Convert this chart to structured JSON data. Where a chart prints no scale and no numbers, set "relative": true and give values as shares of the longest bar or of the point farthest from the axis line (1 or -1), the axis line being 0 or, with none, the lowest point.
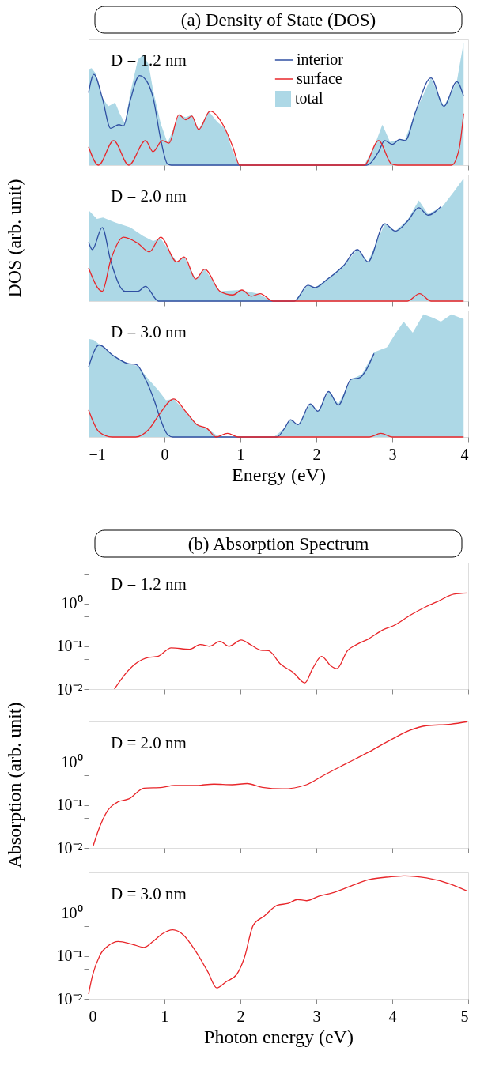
{
  "chart_data": [
    {
      "type": "line",
      "title": "(a)  Density of State (DOS)",
      "xlim": [
        -1,
        4
      ],
      "xticks": [
        -1,
        0,
        1,
        2,
        3,
        4
      ],
      "relative": true,
      "tick_labels": false,
      "grid": false,
      "legend": "top right",
      "line_style": "solid",
      "annotations": [
        "D = 1.2 nm"
      ],
      "series": [
        {
          "name": "interior",
          "color": "#2f4fa2",
          "x": [
            -1.0,
            -0.93,
            -0.82,
            -0.71,
            -0.6,
            -0.54,
            -0.45,
            -0.33,
            -0.23,
            -0.15,
            -0.05,
            0.04,
            0.09,
            2.66,
            2.82,
            2.9,
            3.0,
            3.1,
            3.17,
            3.31,
            3.51,
            3.68,
            3.85,
            3.94
          ],
          "values": [
            0.59,
            0.74,
            0.55,
            0.3,
            0.33,
            0.32,
            0.53,
            0.73,
            0.68,
            0.55,
            0.21,
            0.01,
            0,
            0,
            0.11,
            0.2,
            0.17,
            0.21,
            0.2,
            0.44,
            0.71,
            0.48,
            0.68,
            0.56
          ]
        },
        {
          "name": "surface",
          "color": "#e8262a",
          "x": [
            -1.0,
            -0.87,
            -0.67,
            -0.47,
            -0.25,
            -0.15,
            -0.03,
            0.06,
            0.19,
            0.28,
            0.36,
            0.45,
            0.6,
            0.77,
            0.9,
            0.99,
            2.63,
            2.82,
            2.99,
            3.07,
            3.78,
            3.88,
            3.94
          ],
          "values": [
            0.15,
            0,
            0.2,
            0,
            0.2,
            0.11,
            0.2,
            0.18,
            0.41,
            0.37,
            0.4,
            0.29,
            0.44,
            0.33,
            0.15,
            0,
            0,
            0.2,
            0.01,
            0,
            0,
            0.13,
            0.42
          ]
        },
        {
          "name": "total",
          "color": "#add8e6",
          "type": "area",
          "x": [
            -1.0,
            -0.96,
            -0.91,
            -0.82,
            -0.74,
            -0.65,
            -0.59,
            -0.52,
            -0.45,
            -0.35,
            -0.28,
            -0.21,
            -0.15,
            -0.05,
            0.04,
            0.12,
            0.19,
            0.28,
            0.36,
            0.45,
            0.58,
            0.7,
            0.8,
            0.9,
            0.99,
            2.63,
            2.76,
            2.87,
            2.97,
            3.1,
            3.17,
            3.31,
            3.51,
            3.68,
            3.85,
            3.94
          ],
          "values": [
            0.78,
            0.79,
            0.75,
            0.55,
            0.48,
            0.51,
            0.42,
            0.34,
            0.59,
            0.86,
            0.9,
            0.82,
            0.61,
            0.34,
            0.18,
            0.3,
            0.41,
            0.39,
            0.41,
            0.29,
            0.44,
            0.35,
            0.3,
            0.11,
            0,
            0,
            0.15,
            0.33,
            0.19,
            0.21,
            0.21,
            0.44,
            0.71,
            0.48,
            0.68,
            1.0
          ]
        }
      ]
    },
    {
      "type": "line",
      "ylabel": "DOS (arb. unit)",
      "xlim": [
        -1,
        4
      ],
      "xticks": [
        -1,
        0,
        1,
        2,
        3,
        4
      ],
      "relative": true,
      "tick_labels": false,
      "grid": false,
      "line_style": "solid",
      "annotations": [
        "D = 2.0 nm"
      ],
      "series": [
        {
          "color": "#2f4fa2",
          "x": [
            -1.0,
            -0.95,
            -0.82,
            -0.71,
            -0.52,
            -0.35,
            -0.25,
            -0.08,
            1.71,
            1.89,
            1.98,
            2.15,
            2.36,
            2.54,
            2.68,
            2.9,
            3.04,
            3.2,
            3.35,
            3.47,
            3.64
          ],
          "values": [
            0.48,
            0.42,
            0.6,
            0.33,
            0.08,
            0.08,
            0.12,
            0,
            0,
            0.13,
            0.11,
            0.18,
            0.29,
            0.42,
            0.32,
            0.63,
            0.57,
            0.65,
            0.76,
            0.7,
            0.77
          ]
        },
        {
          "color": "#e8262a",
          "x": [
            -1.0,
            -0.82,
            -0.71,
            -0.54,
            -0.35,
            -0.2,
            -0.05,
            0.16,
            0.26,
            0.41,
            0.53,
            0.73,
            0.9,
            1.02,
            1.14,
            1.26,
            1.43,
            3.2,
            3.36,
            3.51,
            3.94
          ],
          "values": [
            0.27,
            0.08,
            0.33,
            0.52,
            0.47,
            0.4,
            0.52,
            0.32,
            0.36,
            0.18,
            0.26,
            0.08,
            0.05,
            0.09,
            0.04,
            0.06,
            0,
            0,
            0.06,
            0,
            0
          ]
        },
        {
          "color": "#add8e6",
          "type": "area",
          "x": [
            -1.0,
            -0.89,
            -0.81,
            -0.65,
            -0.45,
            -0.28,
            -0.15,
            -0.05,
            0.16,
            0.26,
            0.41,
            0.53,
            0.73,
            1.0,
            1.24,
            1.41,
            1.71,
            1.89,
            1.98,
            2.15,
            2.36,
            2.54,
            2.68,
            2.9,
            3.04,
            3.2,
            3.35,
            3.47,
            3.66,
            3.81,
            3.94
          ],
          "values": [
            0.74,
            0.67,
            0.68,
            0.64,
            0.6,
            0.53,
            0.49,
            0.51,
            0.32,
            0.36,
            0.18,
            0.26,
            0.08,
            0.09,
            0.06,
            0,
            0,
            0.13,
            0.11,
            0.18,
            0.29,
            0.42,
            0.32,
            0.63,
            0.57,
            0.66,
            0.82,
            0.71,
            0.77,
            0.89,
            1.0
          ]
        }
      ]
    },
    {
      "type": "line",
      "xlabel": "Energy (eV)",
      "xlim": [
        -1,
        4
      ],
      "xticks": [
        -1,
        0,
        1,
        2,
        3,
        4
      ],
      "relative": true,
      "tick_labels": "x",
      "grid": false,
      "line_style": "solid",
      "annotations": [
        "D = 3.0 nm"
      ],
      "series": [
        {
          "color": "#2f4fa2",
          "x": [
            -1.0,
            -0.86,
            -0.69,
            -0.49,
            -0.37,
            -0.25,
            -0.13,
            -0.05,
            0.04,
            0.11,
            1.48,
            1.58,
            1.66,
            1.76,
            1.92,
            2.02,
            2.16,
            2.29,
            2.46,
            2.56,
            2.76
          ],
          "values": [
            0.57,
            0.75,
            0.67,
            0.6,
            0.59,
            0.47,
            0.29,
            0.14,
            0.02,
            0,
            0,
            0.07,
            0.14,
            0.1,
            0.27,
            0.21,
            0.37,
            0.26,
            0.47,
            0.48,
            0.68
          ]
        },
        {
          "color": "#e8262a",
          "x": [
            -1.0,
            -0.86,
            -0.69,
            -0.38,
            -0.21,
            -0.05,
            0.12,
            0.29,
            0.43,
            0.56,
            0.68,
            0.83,
            0.97,
            2.7,
            2.85,
            3.0,
            3.94
          ],
          "values": [
            0.22,
            0.04,
            0,
            0,
            0.06,
            0.2,
            0.31,
            0.2,
            0.1,
            0.07,
            0,
            0.03,
            0,
            0,
            0.03,
            0,
            0
          ]
        },
        {
          "color": "#add8e6",
          "type": "area",
          "x": [
            -1.0,
            -0.93,
            -0.79,
            -0.62,
            -0.45,
            -0.35,
            -0.21,
            -0.08,
            0.02,
            0.12,
            0.29,
            0.43,
            0.56,
            0.7,
            0.9,
            1.44,
            1.58,
            1.66,
            1.76,
            1.92,
            2.02,
            2.16,
            2.29,
            2.46,
            2.6,
            2.76,
            2.93,
            3.04,
            3.15,
            3.27,
            3.41,
            3.54,
            3.64,
            3.78,
            3.94
          ],
          "values": [
            0.8,
            0.79,
            0.72,
            0.64,
            0.59,
            0.58,
            0.47,
            0.38,
            0.3,
            0.31,
            0.2,
            0.1,
            0.07,
            0.01,
            0,
            0,
            0.07,
            0.14,
            0.1,
            0.27,
            0.21,
            0.37,
            0.27,
            0.47,
            0.51,
            0.69,
            0.73,
            0.84,
            0.94,
            0.85,
            1.0,
            0.97,
            0.94,
            1.0,
            0.96
          ]
        }
      ]
    },
    {
      "type": "line",
      "title": "(b)  Absorption Spectrum",
      "log": "y",
      "xlim": [
        0,
        5
      ],
      "xticks": [
        0,
        1,
        2,
        3,
        4,
        5
      ],
      "ylim": [
        0.01,
        9
      ],
      "yticks": [
        {
          "value": 0.01,
          "label": "10⁻²"
        },
        {
          "value": 0.05,
          "label": null
        },
        {
          "value": 0.1,
          "label": "10⁻¹"
        },
        {
          "value": 0.5,
          "label": null
        },
        {
          "value": 1,
          "label": "10⁰"
        },
        {
          "value": 5,
          "label": null
        }
      ],
      "tick_labels": "y",
      "grid": false,
      "line_style": "solid",
      "annotations": [
        "D = 1.2 nm"
      ],
      "series": [
        {
          "color": "#e8262a",
          "x": [
            0.34,
            0.43,
            0.61,
            0.79,
            0.91,
            1.09,
            1.33,
            1.47,
            1.59,
            1.73,
            1.85,
            2.01,
            2.13,
            2.27,
            2.37,
            2.53,
            2.69,
            2.85,
            2.95,
            3.07,
            3.19,
            3.27,
            3.41,
            3.53,
            3.69,
            3.89,
            4.01,
            4.25,
            4.45,
            4.61,
            4.81,
            4.99
          ],
          "values": [
            0.01,
            0.017,
            0.038,
            0.055,
            0.058,
            0.092,
            0.085,
            0.11,
            0.1,
            0.13,
            0.1,
            0.14,
            0.11,
            0.081,
            0.079,
            0.038,
            0.025,
            0.014,
            0.03,
            0.058,
            0.035,
            0.03,
            0.079,
            0.11,
            0.15,
            0.25,
            0.3,
            0.55,
            0.85,
            1.14,
            1.65,
            1.76
          ]
        }
      ]
    },
    {
      "type": "line",
      "ylabel": "Absorption (arb. unit)",
      "log": "y",
      "xlim": [
        0,
        5
      ],
      "xticks": [
        0,
        1,
        2,
        3,
        4,
        5
      ],
      "ylim": [
        0.01,
        9
      ],
      "yticks": [
        {
          "value": 0.01,
          "label": "10⁻²"
        },
        {
          "value": 0.05,
          "label": null
        },
        {
          "value": 0.1,
          "label": "10⁻¹"
        },
        {
          "value": 0.5,
          "label": null
        },
        {
          "value": 1,
          "label": "10⁰"
        },
        {
          "value": 5,
          "label": null
        }
      ],
      "tick_labels": "y",
      "grid": false,
      "line_style": "solid",
      "annotations": [
        "D = 2.0 nm"
      ],
      "series": [
        {
          "color": "#e8262a",
          "x": [
            0.06,
            0.13,
            0.25,
            0.39,
            0.53,
            0.73,
            0.97,
            1.13,
            1.41,
            1.65,
            1.89,
            2.09,
            2.29,
            2.55,
            2.87,
            3.09,
            3.37,
            3.69,
            4.01,
            4.23,
            4.45,
            4.77,
            4.99
          ],
          "values": [
            0.011,
            0.026,
            0.074,
            0.12,
            0.14,
            0.25,
            0.26,
            0.29,
            0.29,
            0.31,
            0.3,
            0.32,
            0.26,
            0.24,
            0.3,
            0.49,
            0.89,
            1.74,
            3.6,
            5.6,
            7.2,
            7.8,
            8.9
          ]
        }
      ]
    },
    {
      "type": "line",
      "xlabel": "Photon energy (eV)",
      "log": "y",
      "xlim": [
        0,
        5
      ],
      "xticks": [
        0,
        1,
        2,
        3,
        4,
        5
      ],
      "ylim": [
        0.01,
        9
      ],
      "yticks": [
        {
          "value": 0.01,
          "label": "10⁻²"
        },
        {
          "value": 0.05,
          "label": null
        },
        {
          "value": 0.1,
          "label": "10⁻¹"
        },
        {
          "value": 0.5,
          "label": null
        },
        {
          "value": 1,
          "label": "10⁰"
        },
        {
          "value": 5,
          "label": null
        }
      ],
      "grid": false,
      "line_style": "solid",
      "annotations": [
        "D = 3.0 nm"
      ],
      "series": [
        {
          "color": "#e8262a",
          "x": [
            0.0,
            0.05,
            0.15,
            0.27,
            0.39,
            0.57,
            0.73,
            0.85,
            0.97,
            1.11,
            1.25,
            1.41,
            1.57,
            1.69,
            1.81,
            1.95,
            2.05,
            2.17,
            2.31,
            2.49,
            2.63,
            2.75,
            2.87,
            3.03,
            3.21,
            3.45,
            3.69,
            3.97,
            4.17,
            4.45,
            4.77,
            4.99
          ],
          "values": [
            0.013,
            0.034,
            0.105,
            0.18,
            0.22,
            0.19,
            0.16,
            0.22,
            0.33,
            0.41,
            0.31,
            0.13,
            0.043,
            0.018,
            0.025,
            0.037,
            0.089,
            0.53,
            0.85,
            1.55,
            1.7,
            2.1,
            1.97,
            2.5,
            2.99,
            4.3,
            6.1,
            7.1,
            7.5,
            6.7,
            4.8,
            3.3
          ]
        }
      ]
    }
  ]
}
